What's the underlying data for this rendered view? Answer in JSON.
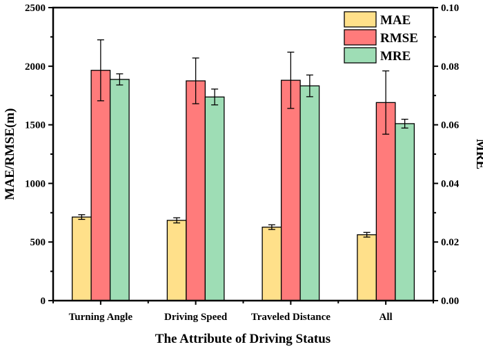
{
  "chart_data": {
    "type": "bar",
    "title": "",
    "xlabel": "The Attribute of Driving Status",
    "ylabel": "MAE/RMSE(m)",
    "y2label": "MRE",
    "categories": [
      "Turning Angle",
      "Driving Speed",
      "Traveled Distance",
      "All"
    ],
    "ylim": [
      0,
      2500
    ],
    "y2lim": [
      0,
      0.1
    ],
    "yticks": [
      "0",
      "500",
      "1000",
      "1500",
      "2000",
      "2500"
    ],
    "y2ticks": [
      "0.00",
      "0.02",
      "0.04",
      "0.06",
      "0.08",
      "0.10"
    ],
    "legend_position": "top-right",
    "grid": false,
    "series": [
      {
        "name": "MAE",
        "axis": "left",
        "color": "#FFE08A",
        "values": [
          713,
          685,
          627,
          562
        ],
        "errors": [
          20,
          22,
          20,
          20
        ]
      },
      {
        "name": "RMSE",
        "axis": "left",
        "color": "#FF7B7B",
        "values": [
          1965,
          1875,
          1880,
          1690
        ],
        "errors": [
          260,
          195,
          240,
          270
        ]
      },
      {
        "name": "MRE",
        "axis": "right",
        "color": "#9EDDB5",
        "values": [
          0.0755,
          0.0695,
          0.0733,
          0.0604
        ],
        "errors": [
          0.0019,
          0.0027,
          0.0037,
          0.0015
        ]
      }
    ]
  }
}
